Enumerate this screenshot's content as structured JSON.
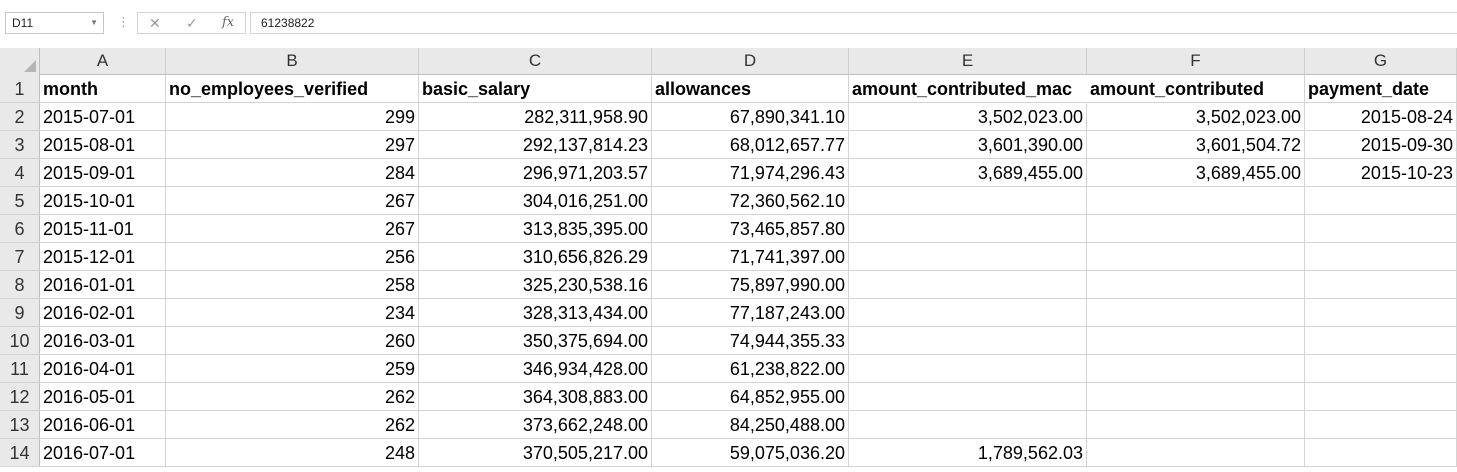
{
  "formula_bar": {
    "name_box": "D11",
    "cancel_icon": "✕",
    "enter_icon": "✓",
    "function_icon": "fx",
    "formula": "61238822"
  },
  "columns": [
    "A",
    "B",
    "C",
    "D",
    "E",
    "F",
    "G"
  ],
  "row_numbers": [
    "1",
    "2",
    "3",
    "4",
    "5",
    "6",
    "7",
    "8",
    "9",
    "10",
    "11",
    "12",
    "13",
    "14"
  ],
  "headers": {
    "A": "month",
    "B": "no_employees_verified",
    "C": "basic_salary",
    "D": "allowances",
    "E": "amount_contributed_mac",
    "F": "amount_contributed",
    "G": "payment_date"
  },
  "rows": [
    {
      "A": "2015-07-01",
      "B": "299",
      "C": "282,311,958.90",
      "D": "67,890,341.10",
      "E": "3,502,023.00",
      "F": "3,502,023.00",
      "G": "2015-08-24"
    },
    {
      "A": "2015-08-01",
      "B": "297",
      "C": "292,137,814.23",
      "D": "68,012,657.77",
      "E": "3,601,390.00",
      "F": "3,601,504.72",
      "G": "2015-09-30"
    },
    {
      "A": "2015-09-01",
      "B": "284",
      "C": "296,971,203.57",
      "D": "71,974,296.43",
      "E": "3,689,455.00",
      "F": "3,689,455.00",
      "G": "2015-10-23"
    },
    {
      "A": "2015-10-01",
      "B": "267",
      "C": "304,016,251.00",
      "D": "72,360,562.10",
      "E": "",
      "F": "",
      "G": ""
    },
    {
      "A": "2015-11-01",
      "B": "267",
      "C": "313,835,395.00",
      "D": "73,465,857.80",
      "E": "",
      "F": "",
      "G": ""
    },
    {
      "A": "2015-12-01",
      "B": "256",
      "C": "310,656,826.29",
      "D": "71,741,397.00",
      "E": "",
      "F": "",
      "G": ""
    },
    {
      "A": "2016-01-01",
      "B": "258",
      "C": "325,230,538.16",
      "D": "75,897,990.00",
      "E": "",
      "F": "",
      "G": ""
    },
    {
      "A": "2016-02-01",
      "B": "234",
      "C": "328,313,434.00",
      "D": "77,187,243.00",
      "E": "",
      "F": "",
      "G": ""
    },
    {
      "A": "2016-03-01",
      "B": "260",
      "C": "350,375,694.00",
      "D": "74,944,355.33",
      "E": "",
      "F": "",
      "G": ""
    },
    {
      "A": "2016-04-01",
      "B": "259",
      "C": "346,934,428.00",
      "D": "61,238,822.00",
      "E": "",
      "F": "",
      "G": ""
    },
    {
      "A": "2016-05-01",
      "B": "262",
      "C": "364,308,883.00",
      "D": "64,852,955.00",
      "E": "",
      "F": "",
      "G": ""
    },
    {
      "A": "2016-06-01",
      "B": "262",
      "C": "373,662,248.00",
      "D": "84,250,488.00",
      "E": "",
      "F": "",
      "G": ""
    },
    {
      "A": "2016-07-01",
      "B": "248",
      "C": "370,505,217.00",
      "D": "59,075,036.20",
      "E": "1,789,562.03",
      "F": "",
      "G": ""
    }
  ]
}
